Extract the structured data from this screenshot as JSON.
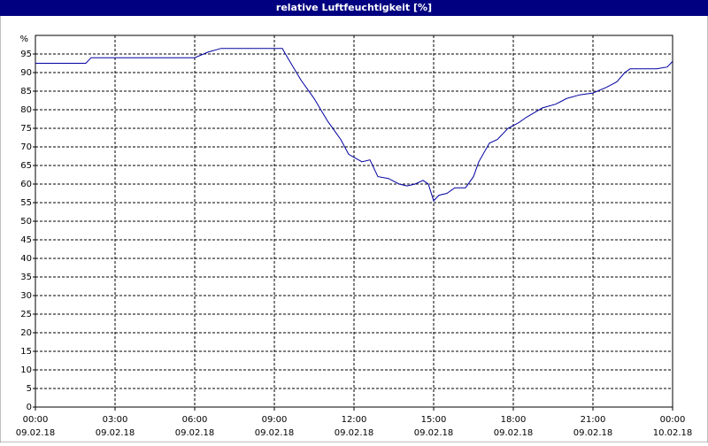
{
  "chart_data": {
    "type": "line",
    "title": "relative Luftfeuchtigkeit [%]",
    "y_label": "%",
    "color": "#0000a0",
    "grid": true,
    "x": [
      0,
      1.9,
      2.1,
      6.0,
      6.5,
      7.0,
      9.3,
      9.5,
      10.0,
      10.5,
      11.0,
      11.5,
      11.8,
      12.3,
      12.6,
      12.9,
      13.3,
      13.7,
      14.0,
      14.3,
      14.6,
      14.8,
      15.0,
      15.2,
      15.5,
      15.8,
      16.2,
      16.5,
      16.7,
      17.1,
      17.4,
      17.8,
      18.2,
      18.5,
      19.1,
      19.6,
      20.0,
      20.5,
      21.0,
      21.5,
      21.9,
      22.2,
      22.4,
      23.4,
      23.8,
      24.0
    ],
    "values": [
      92.5,
      92.5,
      94,
      94,
      95.5,
      96.5,
      96.5,
      94,
      88,
      83,
      77,
      72,
      68,
      66,
      66.5,
      62,
      61.5,
      60,
      59.5,
      60,
      61,
      60,
      55.5,
      57,
      57.5,
      59,
      59,
      62,
      66,
      71,
      72,
      75,
      76.5,
      78,
      80.5,
      81.5,
      83,
      84,
      84.5,
      86,
      87.5,
      90,
      91,
      91,
      91.5,
      93
    ],
    "xlim": [
      0,
      24
    ],
    "xticks": [
      {
        "value": 0,
        "label": "00:00"
      },
      {
        "value": 3,
        "label": "03:00"
      },
      {
        "value": 6,
        "label": "06:00"
      },
      {
        "value": 9,
        "label": "09:00"
      },
      {
        "value": 12,
        "label": "12:00"
      },
      {
        "value": 15,
        "label": "15:00"
      },
      {
        "value": 18,
        "label": "18:00"
      },
      {
        "value": 21,
        "label": "21:00"
      },
      {
        "value": 24,
        "label": "00:00"
      }
    ],
    "xtick_dates": [
      "09.02.18",
      "09.02.18",
      "09.02.18",
      "09.02.18",
      "09.02.18",
      "09.02.18",
      "09.02.18",
      "09.02.18",
      "10.02.18"
    ],
    "ylim": [
      0,
      100
    ],
    "yticks": [
      0,
      5,
      10,
      15,
      20,
      25,
      30,
      35,
      40,
      45,
      50,
      55,
      60,
      65,
      70,
      75,
      80,
      85,
      90,
      95
    ]
  }
}
